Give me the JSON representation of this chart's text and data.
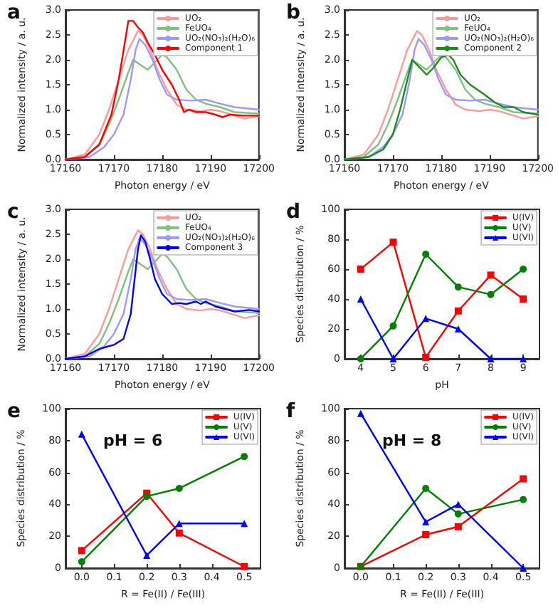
{
  "chart_data": [
    {
      "type": "line",
      "title": "a",
      "xlabel": "Photon energy / eV",
      "ylabel": "Normalized intensity / a. u.",
      "xlim": [
        17160,
        17200
      ],
      "xticks": [
        17160,
        17170,
        17180,
        17190,
        17200
      ],
      "ylim": [
        0,
        3
      ],
      "yticks": [
        {
          "value": 0,
          "label": "0.0"
        },
        {
          "value": 0.5,
          "label": "0.5"
        },
        {
          "value": 1,
          "label": "1.0"
        },
        {
          "value": 1.5,
          "label": "1.5"
        },
        {
          "value": 2,
          "label": "2.0"
        },
        {
          "value": 2.5,
          "label": "2.5"
        },
        {
          "value": 3,
          "label": "3.0"
        }
      ],
      "legend": "top right",
      "grid": false,
      "marker": "none",
      "series": [
        {
          "name": "UO₂",
          "color": "#ff9999",
          "x": [
            17160,
            17164,
            17167,
            17169,
            17171,
            17173,
            17175,
            17176,
            17177.5,
            17179,
            17181,
            17183,
            17185,
            17188,
            17190,
            17192,
            17195,
            17197,
            17200
          ],
          "values": [
            0,
            0.1,
            0.5,
            1.0,
            1.6,
            2.2,
            2.58,
            2.5,
            2.2,
            1.8,
            1.4,
            1.1,
            1.0,
            0.97,
            1.0,
            0.97,
            0.88,
            0.82,
            0.87
          ]
        },
        {
          "name": "FeUO₄",
          "color": "#80c080",
          "x": [
            17160,
            17164,
            17167,
            17169,
            17171,
            17173,
            17174,
            17175.5,
            17177,
            17178,
            17180,
            17181,
            17183,
            17185,
            17187,
            17189,
            17192,
            17195,
            17200
          ],
          "values": [
            0,
            0.05,
            0.3,
            0.7,
            1.2,
            1.75,
            2.0,
            1.9,
            1.8,
            1.9,
            2.1,
            2.05,
            1.8,
            1.4,
            1.2,
            1.12,
            1.05,
            0.95,
            0.92
          ]
        },
        {
          "name": "UO₂(NO₃)₂(H₂O)₆",
          "color": "#9999ff",
          "x": [
            17160,
            17165,
            17168,
            17170,
            17172,
            17173.5,
            17174.5,
            17175.3,
            17176.5,
            17178,
            17179.5,
            17181,
            17183,
            17186,
            17189,
            17192,
            17195,
            17200
          ],
          "values": [
            0,
            0.05,
            0.25,
            0.5,
            0.9,
            1.6,
            2.2,
            2.42,
            2.3,
            2.0,
            1.6,
            1.3,
            1.2,
            1.18,
            1.2,
            1.12,
            1.05,
            1.0
          ]
        },
        {
          "name": "Component 1",
          "color": "#ff0000",
          "x": [
            17160,
            17164,
            17167,
            17169.5,
            17171,
            17172.2,
            17173,
            17174,
            17175,
            17176,
            17177,
            17178.5,
            17180,
            17182,
            17183.5,
            17184.5,
            17185.5,
            17187,
            17189,
            17191,
            17192.5,
            17194,
            17197,
            17200
          ],
          "values": [
            0,
            0.05,
            0.3,
            0.9,
            1.6,
            2.3,
            2.78,
            2.78,
            2.65,
            2.55,
            2.35,
            2.1,
            1.8,
            1.5,
            1.2,
            0.95,
            1.0,
            0.95,
            0.95,
            0.9,
            0.85,
            0.9,
            0.88,
            0.88
          ]
        }
      ]
    },
    {
      "type": "line",
      "title": "b",
      "xlabel": "Photon energy / eV",
      "ylabel": "Normalized intensity / a. u.",
      "xlim": [
        17160,
        17200
      ],
      "xticks": [
        17160,
        17170,
        17180,
        17190,
        17200
      ],
      "ylim": [
        0,
        3
      ],
      "yticks": [
        {
          "value": 0,
          "label": "0.0"
        },
        {
          "value": 0.5,
          "label": "0.5"
        },
        {
          "value": 1,
          "label": "1.0"
        },
        {
          "value": 1.5,
          "label": "1.5"
        },
        {
          "value": 2,
          "label": "2.0"
        },
        {
          "value": 2.5,
          "label": "2.5"
        },
        {
          "value": 3,
          "label": "3.0"
        }
      ],
      "legend": "top right",
      "grid": false,
      "marker": "none",
      "series": [
        {
          "name": "UO₂",
          "color": "#ff9999",
          "x": [
            17160,
            17164,
            17167,
            17169,
            17171,
            17173,
            17175,
            17176,
            17177.5,
            17179,
            17181,
            17183,
            17185,
            17188,
            17190,
            17192,
            17195,
            17197,
            17200
          ],
          "values": [
            0,
            0.1,
            0.5,
            1.0,
            1.6,
            2.2,
            2.58,
            2.5,
            2.2,
            1.8,
            1.4,
            1.1,
            1.0,
            0.97,
            1.0,
            0.97,
            0.88,
            0.82,
            0.87
          ]
        },
        {
          "name": "FeUO₄",
          "color": "#80c080",
          "x": [
            17160,
            17164,
            17167,
            17169,
            17171,
            17173,
            17174,
            17175.5,
            17177,
            17178,
            17180,
            17181,
            17183,
            17185,
            17187,
            17189,
            17192,
            17195,
            17200
          ],
          "values": [
            0,
            0.05,
            0.3,
            0.7,
            1.2,
            1.75,
            2.0,
            1.9,
            1.8,
            1.9,
            2.1,
            2.05,
            1.8,
            1.4,
            1.2,
            1.12,
            1.05,
            0.95,
            0.92
          ]
        },
        {
          "name": "UO₂(NO₃)₂(H₂O)₆",
          "color": "#9999ff",
          "x": [
            17160,
            17165,
            17168,
            17170,
            17172,
            17173.5,
            17174.5,
            17175.3,
            17176.5,
            17178,
            17179.5,
            17181,
            17183,
            17186,
            17189,
            17192,
            17195,
            17200
          ],
          "values": [
            0,
            0.05,
            0.25,
            0.5,
            0.9,
            1.6,
            2.2,
            2.42,
            2.3,
            2.0,
            1.6,
            1.3,
            1.2,
            1.18,
            1.2,
            1.12,
            1.05,
            1.0
          ]
        },
        {
          "name": "Component 2",
          "color": "#1a8a1a",
          "x": [
            17160,
            17165,
            17168,
            17170,
            17171.5,
            17173,
            17174,
            17175.5,
            17177,
            17178.5,
            17180,
            17181.5,
            17182.5,
            17184,
            17186,
            17187.5,
            17189,
            17191,
            17193,
            17195,
            17197,
            17200
          ],
          "values": [
            0,
            0.05,
            0.2,
            0.5,
            1.0,
            1.6,
            2.0,
            1.85,
            1.7,
            1.85,
            2.05,
            2.1,
            2.0,
            1.7,
            1.5,
            1.4,
            1.3,
            1.15,
            1.05,
            1.05,
            0.95,
            0.9
          ]
        }
      ]
    },
    {
      "type": "line",
      "title": "c",
      "xlabel": "Photon energy / eV",
      "ylabel": "Normalized intensity / a. u.",
      "xlim": [
        17160,
        17200
      ],
      "xticks": [
        17160,
        17170,
        17180,
        17190,
        17200
      ],
      "ylim": [
        0,
        3
      ],
      "yticks": [
        {
          "value": 0,
          "label": "0.0"
        },
        {
          "value": 0.5,
          "label": "0.5"
        },
        {
          "value": 1,
          "label": "1.0"
        },
        {
          "value": 1.5,
          "label": "1.5"
        },
        {
          "value": 2,
          "label": "2.0"
        },
        {
          "value": 2.5,
          "label": "2.5"
        },
        {
          "value": 3,
          "label": "3.0"
        }
      ],
      "legend": "top right",
      "grid": false,
      "marker": "none",
      "series": [
        {
          "name": "UO₂",
          "color": "#ff9999",
          "x": [
            17160,
            17164,
            17167,
            17169,
            17171,
            17173,
            17175,
            17176,
            17177.5,
            17179,
            17181,
            17183,
            17185,
            17188,
            17190,
            17192,
            17195,
            17197,
            17200
          ],
          "values": [
            0,
            0.1,
            0.5,
            1.0,
            1.6,
            2.2,
            2.58,
            2.5,
            2.2,
            1.8,
            1.4,
            1.1,
            1.0,
            0.97,
            1.0,
            0.97,
            0.88,
            0.82,
            0.87
          ]
        },
        {
          "name": "FeUO₄",
          "color": "#80c080",
          "x": [
            17160,
            17164,
            17167,
            17169,
            17171,
            17173,
            17174,
            17175.5,
            17177,
            17178,
            17180,
            17181,
            17183,
            17185,
            17187,
            17189,
            17192,
            17195,
            17200
          ],
          "values": [
            0,
            0.05,
            0.3,
            0.7,
            1.2,
            1.75,
            2.0,
            1.9,
            1.8,
            1.9,
            2.1,
            2.05,
            1.8,
            1.4,
            1.2,
            1.12,
            1.05,
            0.95,
            0.92
          ]
        },
        {
          "name": "UO₂(NO₃)₂(H₂O)₆",
          "color": "#9999ff",
          "x": [
            17160,
            17165,
            17168,
            17170,
            17172,
            17173.5,
            17174.5,
            17175.3,
            17176.5,
            17178,
            17179.5,
            17181,
            17183,
            17186,
            17189,
            17192,
            17195,
            17200
          ],
          "values": [
            0,
            0.05,
            0.25,
            0.5,
            0.9,
            1.6,
            2.2,
            2.42,
            2.3,
            2.0,
            1.6,
            1.3,
            1.2,
            1.18,
            1.2,
            1.12,
            1.05,
            1.0
          ]
        },
        {
          "name": "Component 3",
          "color": "#0000ff",
          "x": [
            17160,
            17164,
            17167,
            17170,
            17172,
            17173.5,
            17174.3,
            17175,
            17175.6,
            17176.5,
            17177.5,
            17178.5,
            17180,
            17182,
            17183.5,
            17185,
            17187,
            17188,
            17189,
            17191,
            17193,
            17195,
            17198,
            17200
          ],
          "values": [
            0,
            0.05,
            0.2,
            0.28,
            0.4,
            0.9,
            1.6,
            2.2,
            2.48,
            2.35,
            2.0,
            1.6,
            1.3,
            1.1,
            1.12,
            1.1,
            1.15,
            1.1,
            1.15,
            1.05,
            1.0,
            0.95,
            0.98,
            0.95
          ]
        }
      ]
    },
    {
      "type": "line",
      "title": "d",
      "xlabel": "pH",
      "ylabel": "Species distribution / %",
      "xlim": [
        3.5,
        9.5
      ],
      "xticks": [
        4,
        5,
        6,
        7,
        8,
        9
      ],
      "ylim": [
        0,
        100
      ],
      "yticks": [
        0,
        20,
        40,
        60,
        80,
        100
      ],
      "legend": "top right",
      "grid": false,
      "x": [
        4,
        5,
        6,
        7,
        8,
        9
      ],
      "series": [
        {
          "name": "U(IV)",
          "color": "#ff0000",
          "marker": "square",
          "values": [
            60,
            78,
            1,
            32,
            56,
            40
          ]
        },
        {
          "name": "U(V)",
          "color": "#008000",
          "marker": "circle",
          "values": [
            0,
            22,
            70,
            48,
            43,
            60
          ]
        },
        {
          "name": "U(VI)",
          "color": "#0000ff",
          "marker": "triangle",
          "values": [
            40,
            0,
            27,
            20,
            0,
            0
          ]
        }
      ]
    },
    {
      "type": "line",
      "title": "e",
      "annotations": [
        "pH = 6"
      ],
      "xlabel": "R = Fe(II) / Fe(III)",
      "ylabel": "Species distribution / %",
      "xlim": [
        -0.05,
        0.55
      ],
      "xticks": [
        {
          "value": 0,
          "label": "0.0"
        },
        0.1,
        0.2,
        0.3,
        0.4,
        0.5
      ],
      "ylim": [
        0,
        100
      ],
      "yticks": [
        0,
        20,
        40,
        60,
        80,
        100
      ],
      "legend": "top right",
      "grid": false,
      "x": [
        0,
        0.2,
        0.3,
        0.5
      ],
      "series": [
        {
          "name": "U(IV)",
          "color": "#ff0000",
          "marker": "square",
          "values": [
            11,
            47,
            22,
            1
          ]
        },
        {
          "name": "U(V)",
          "color": "#008000",
          "marker": "circle",
          "values": [
            4,
            45,
            50,
            70
          ]
        },
        {
          "name": "U(VI)",
          "color": "#0000ff",
          "marker": "triangle",
          "values": [
            84,
            8,
            28,
            28
          ]
        }
      ]
    },
    {
      "type": "line",
      "title": "f",
      "annotations": [
        "pH = 8"
      ],
      "xlabel": "R = Fe(II) / Fe(III)",
      "ylabel": "Species distribution / %",
      "xlim": [
        -0.05,
        0.55
      ],
      "xticks": [
        {
          "value": 0,
          "label": "0.0"
        },
        0.1,
        0.2,
        0.3,
        0.4,
        0.5
      ],
      "ylim": [
        0,
        100
      ],
      "yticks": [
        0,
        20,
        40,
        60,
        80,
        100
      ],
      "legend": "top right",
      "grid": false,
      "x": [
        0,
        0.2,
        0.3,
        0.5
      ],
      "series": [
        {
          "name": "U(IV)",
          "color": "#ff0000",
          "marker": "square",
          "values": [
            1,
            21,
            26,
            56
          ]
        },
        {
          "name": "U(V)",
          "color": "#008000",
          "marker": "circle",
          "values": [
            1,
            50,
            34,
            43
          ]
        },
        {
          "name": "U(VI)",
          "color": "#0000ff",
          "marker": "triangle",
          "values": [
            97,
            29,
            40,
            0
          ]
        }
      ]
    }
  ]
}
